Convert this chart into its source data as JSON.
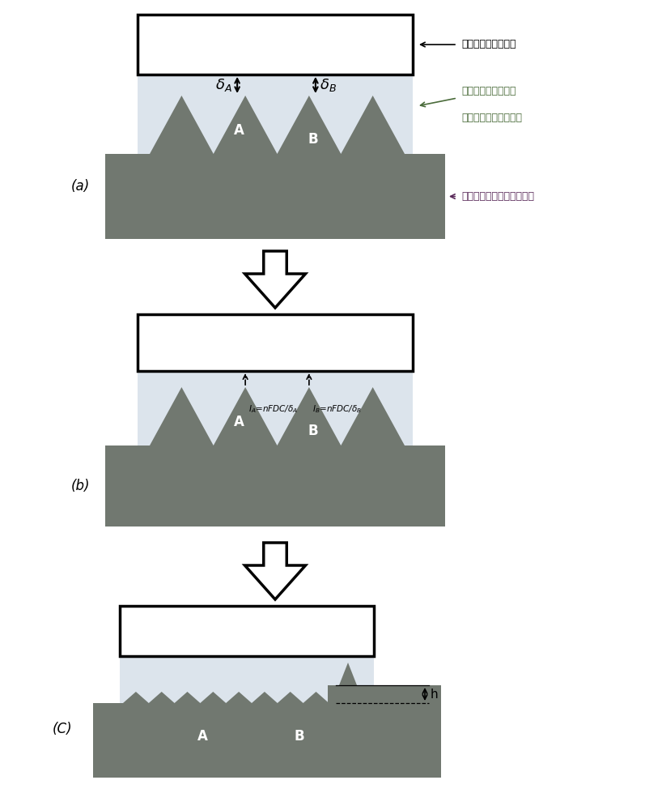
{
  "bg_color": "#ffffff",
  "electrode_color": "#ffffff",
  "electrode_edge": "#1a1a1a",
  "film_color": "#dce4ec",
  "workpiece_color": "#7a7f8a",
  "workpiece_fill": "#6e7a6e",
  "label_a": "A",
  "label_b": "B",
  "label_panel_a": "(a)",
  "label_panel_b": "(b)",
  "label_panel_c": "(C)",
  "text_electrode": "表面超光滑模板电极",
  "text_film_line1": "含电化学活性基团的",
  "text_film_line2": "水合凝胶聚合物超薄膜",
  "text_workpiece": "纳米量级表面粗糙度的工件",
  "arrow_color": "#1a1a1a",
  "font_size_label": 12,
  "font_size_panel": 12,
  "font_size_annot": 9,
  "font_size_delta": 13,
  "spike_color_dark": "#6b7468",
  "spike_color_light": "#8a9485"
}
